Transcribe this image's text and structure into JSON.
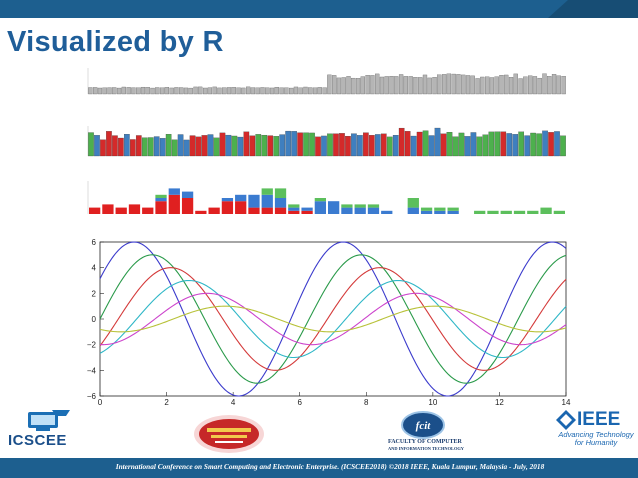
{
  "slide": {
    "title": "Visualized by R",
    "footer": "International Conference on Smart Computing and Electronic Enterprise. (ICSCEE2018) ©2018 IEEE, Kuala Lumpur, Malaysia - July, 2018",
    "accent_color": "#1d5f8f",
    "title_color": "#1f5e99"
  },
  "logos": {
    "ieee": {
      "word": "IEEE",
      "tagline": "Advancing Technology for Humanity"
    },
    "icscee": {
      "word": "ICSCEE"
    },
    "fcit": {
      "title": "FACULTY OF COMPUTER",
      "subtitle": "AND INFORMATION TECHNOLOGY",
      "badge": "fcit"
    }
  },
  "chart_data": [
    {
      "type": "bar",
      "panel": "gray-bars",
      "bar_count": 100,
      "color": "#b5b5b5",
      "values": [
        4,
        4,
        4,
        4,
        4,
        4,
        4,
        4,
        4,
        4,
        4,
        4,
        4,
        4,
        4,
        4,
        4,
        4,
        4,
        4,
        4,
        4,
        4,
        4,
        4,
        4,
        4,
        4,
        4,
        4,
        4,
        4,
        4,
        4,
        4,
        4,
        4,
        4,
        4,
        4,
        4,
        4,
        4,
        4,
        4,
        4,
        4,
        4,
        4,
        4,
        11,
        11,
        11,
        11,
        11,
        11,
        11,
        11,
        11,
        11,
        11,
        11,
        11,
        11,
        11,
        11,
        11,
        11,
        11,
        11,
        11,
        11,
        11,
        11,
        11,
        11,
        11,
        11,
        11,
        11,
        11,
        11,
        11,
        11,
        11,
        11,
        11,
        11,
        11,
        11,
        11,
        11,
        11,
        11,
        11,
        11,
        11,
        11,
        11,
        11
      ],
      "ylim": [
        0,
        16
      ]
    },
    {
      "type": "bar",
      "panel": "rgb-bars",
      "series": [
        {
          "color": "#d42a2a"
        },
        {
          "color": "#3f7fbf"
        },
        {
          "color": "#4db04d"
        }
      ],
      "ylim": [
        0,
        14
      ]
    },
    {
      "type": "bar",
      "panel": "stacked-bars",
      "categories_count": 36,
      "series": [
        {
          "color": "#e02020",
          "values": [
            2,
            3,
            2,
            3,
            2,
            4,
            6,
            5,
            1,
            2,
            4,
            4,
            2,
            2,
            2,
            1,
            1,
            0,
            0,
            0,
            0,
            0,
            0,
            0,
            0,
            0,
            0,
            0,
            0,
            0,
            0,
            0,
            0,
            0,
            0,
            0
          ]
        },
        {
          "color": "#3b7bd0",
          "values": [
            0,
            0,
            0,
            0,
            0,
            1,
            2,
            2,
            0,
            0,
            1,
            2,
            4,
            4,
            3,
            1,
            1,
            4,
            4,
            2,
            2,
            2,
            1,
            0,
            2,
            1,
            1,
            1,
            0,
            0,
            0,
            0,
            0,
            0,
            0,
            0
          ]
        },
        {
          "color": "#5cbf5c",
          "values": [
            0,
            0,
            0,
            0,
            0,
            1,
            0,
            0,
            0,
            0,
            0,
            0,
            0,
            2,
            3,
            1,
            0,
            1,
            0,
            1,
            1,
            1,
            0,
            0,
            3,
            1,
            1,
            1,
            0,
            1,
            1,
            1,
            1,
            1,
            2,
            1
          ]
        }
      ],
      "ylim": [
        0,
        10
      ]
    },
    {
      "type": "line",
      "panel": "sine-waves",
      "xlim": [
        0,
        14
      ],
      "ylim": [
        -6,
        6
      ],
      "xticks": [
        0,
        2,
        4,
        6,
        8,
        10,
        12,
        14
      ],
      "yticks": [
        -6,
        -4,
        -2,
        0,
        2,
        4,
        6
      ],
      "series": [
        {
          "color": "#3b3bcc",
          "amplitude": 6.0,
          "phase": 0.0
        },
        {
          "color": "#2a9a4a",
          "amplitude": 5.0,
          "phase": 0.55
        },
        {
          "color": "#d43a3a",
          "amplitude": 4.0,
          "phase": 1.1
        },
        {
          "color": "#2fb7c7",
          "amplitude": 3.0,
          "phase": 1.65
        },
        {
          "color": "#cc44cc",
          "amplitude": 2.0,
          "phase": 2.2
        },
        {
          "color": "#b8c23a",
          "amplitude": 1.0,
          "phase": 2.75
        }
      ]
    }
  ]
}
